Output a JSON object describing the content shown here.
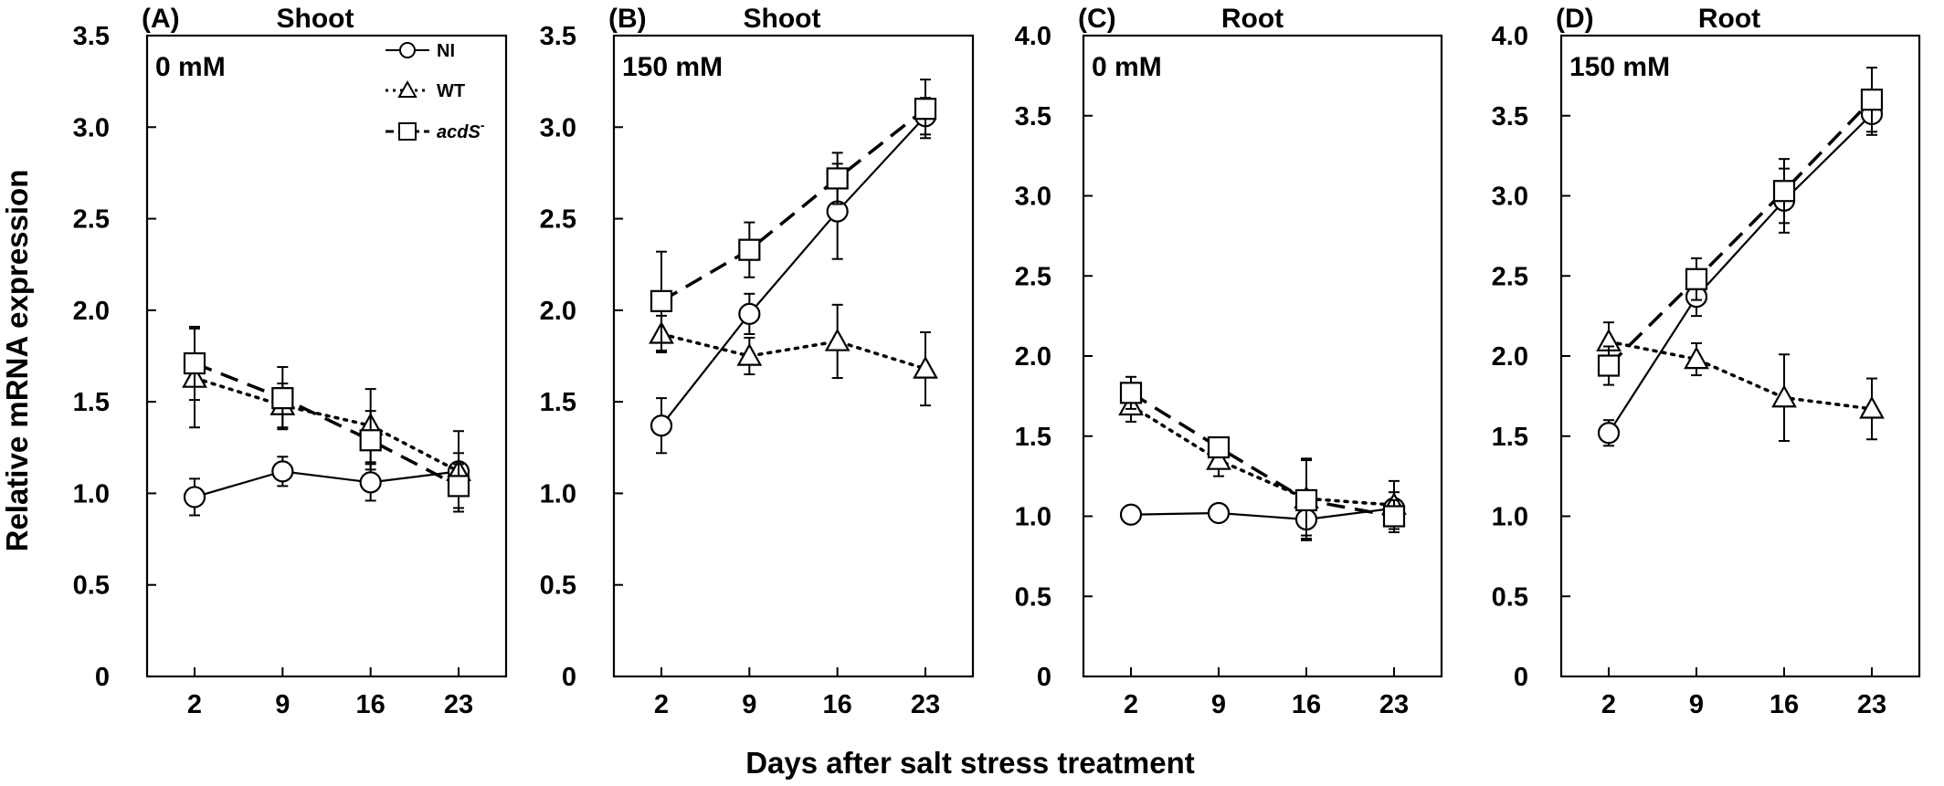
{
  "figure": {
    "ylabel": "Relative mRNA expression",
    "xlabel": "Days after salt stress treatment"
  },
  "legend": [
    {
      "series": "NI",
      "marker": "circle",
      "line": "solid"
    },
    {
      "series": "WT",
      "marker": "triangle",
      "line": "dotted"
    },
    {
      "series": "acdS",
      "suffix": "-",
      "marker": "square",
      "line": "dashed"
    }
  ],
  "chart_data": [
    {
      "type": "line",
      "letter": "(A)",
      "title": "Shoot",
      "concentration": "0 mM",
      "x": [
        2,
        9,
        16,
        23
      ],
      "ylim": [
        0,
        3.5
      ],
      "yticks": [
        "0",
        "0.5",
        "1.0",
        "1.5",
        "2.0",
        "2.5",
        "3.0",
        "3.5"
      ],
      "xticks": [
        "2",
        "9",
        "16",
        "23"
      ],
      "series": [
        {
          "name": "NI",
          "values": [
            0.98,
            1.12,
            1.06,
            1.12
          ],
          "errors": [
            0.1,
            0.08,
            0.1,
            0.1
          ]
        },
        {
          "name": "WT",
          "values": [
            1.63,
            1.48,
            1.37,
            1.12
          ],
          "errors": [
            0.27,
            0.12,
            0.2,
            0.22
          ]
        },
        {
          "name": "acdS",
          "values": [
            1.71,
            1.52,
            1.29,
            1.04
          ],
          "errors": [
            0.2,
            0.17,
            0.16,
            0.12
          ]
        }
      ]
    },
    {
      "type": "line",
      "letter": "(B)",
      "title": "Shoot",
      "concentration": "150 mM",
      "x": [
        2,
        9,
        16,
        23
      ],
      "ylim": [
        0,
        3.5
      ],
      "yticks": [
        "0",
        "0.5",
        "1.0",
        "1.5",
        "2.0",
        "2.5",
        "3.0",
        "3.5"
      ],
      "xticks": [
        "2",
        "9",
        "16",
        "23"
      ],
      "series": [
        {
          "name": "NI",
          "values": [
            1.37,
            1.98,
            2.54,
            3.06
          ],
          "errors": [
            0.15,
            0.11,
            0.26,
            0.1
          ]
        },
        {
          "name": "WT",
          "values": [
            1.87,
            1.75,
            1.83,
            1.68
          ],
          "errors": [
            0.1,
            0.1,
            0.2,
            0.2
          ]
        },
        {
          "name": "acdS",
          "values": [
            2.05,
            2.33,
            2.72,
            3.1
          ],
          "errors": [
            0.27,
            0.15,
            0.14,
            0.16
          ]
        }
      ]
    },
    {
      "type": "line",
      "letter": "(C)",
      "title": "Root",
      "concentration": "0 mM",
      "x": [
        2,
        9,
        16,
        23
      ],
      "ylim": [
        0,
        4.0
      ],
      "yticks": [
        "0",
        "0.5",
        "1.0",
        "1.5",
        "2.0",
        "2.5",
        "3.0",
        "3.5",
        "4.0"
      ],
      "xticks": [
        "2",
        "9",
        "16",
        "23"
      ],
      "series": [
        {
          "name": "NI",
          "values": [
            1.01,
            1.02,
            0.98,
            1.05
          ],
          "errors": [
            0.03,
            0.02,
            0.1,
            0.1
          ]
        },
        {
          "name": "WT",
          "values": [
            1.69,
            1.35,
            1.11,
            1.07
          ],
          "errors": [
            0.1,
            0.1,
            0.25,
            0.15
          ]
        },
        {
          "name": "acdS",
          "values": [
            1.77,
            1.43,
            1.1,
            1.0
          ],
          "errors": [
            0.1,
            0.05,
            0.25,
            0.1
          ]
        }
      ]
    },
    {
      "type": "line",
      "letter": "(D)",
      "title": "Root",
      "concentration": "150 mM",
      "x": [
        2,
        9,
        16,
        23
      ],
      "ylim": [
        0,
        4.0
      ],
      "yticks": [
        "0",
        "0.5",
        "1.0",
        "1.5",
        "2.0",
        "2.5",
        "3.0",
        "3.5",
        "4.0"
      ],
      "xticks": [
        "2",
        "9",
        "16",
        "23"
      ],
      "series": [
        {
          "name": "NI",
          "values": [
            1.52,
            2.37,
            2.97,
            3.51
          ],
          "errors": [
            0.08,
            0.12,
            0.2,
            0.13
          ]
        },
        {
          "name": "WT",
          "values": [
            2.09,
            1.98,
            1.74,
            1.67
          ],
          "errors": [
            0.12,
            0.1,
            0.27,
            0.19
          ]
        },
        {
          "name": "acdS",
          "values": [
            1.94,
            2.48,
            3.03,
            3.6
          ],
          "errors": [
            0.12,
            0.13,
            0.2,
            0.2
          ]
        }
      ]
    }
  ]
}
